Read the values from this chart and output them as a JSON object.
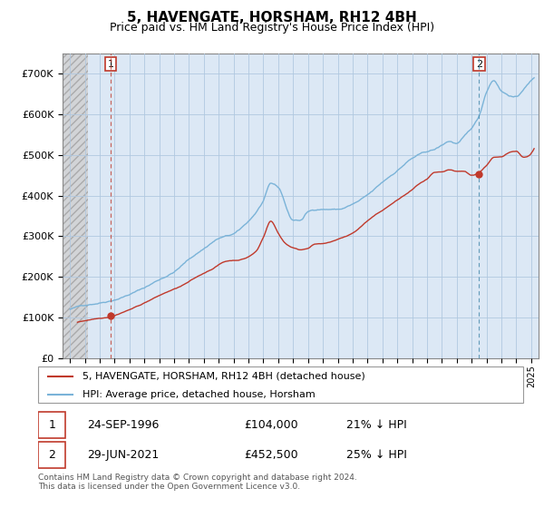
{
  "title": "5, HAVENGATE, HORSHAM, RH12 4BH",
  "subtitle": "Price paid vs. HM Land Registry's House Price Index (HPI)",
  "ylim": [
    0,
    750000
  ],
  "yticks": [
    0,
    100000,
    200000,
    300000,
    400000,
    500000,
    600000,
    700000
  ],
  "ytick_labels": [
    "£0",
    "£100K",
    "£200K",
    "£300K",
    "£400K",
    "£500K",
    "£600K",
    "£700K"
  ],
  "hpi_color": "#7ab3d8",
  "price_color": "#c0392b",
  "plot_bg_color": "#dce8f5",
  "point1_date": 1996.73,
  "point1_price": 104000,
  "point2_date": 2021.49,
  "point2_price": 452500,
  "legend_label1": "5, HAVENGATE, HORSHAM, RH12 4BH (detached house)",
  "legend_label2": "HPI: Average price, detached house, Horsham",
  "grid_color": "#b0c8e0",
  "hatch_color": "#c8c8c8",
  "title_fontsize": 11,
  "subtitle_fontsize": 9,
  "footnote": "Contains HM Land Registry data © Crown copyright and database right 2024.\nThis data is licensed under the Open Government Licence v3.0."
}
